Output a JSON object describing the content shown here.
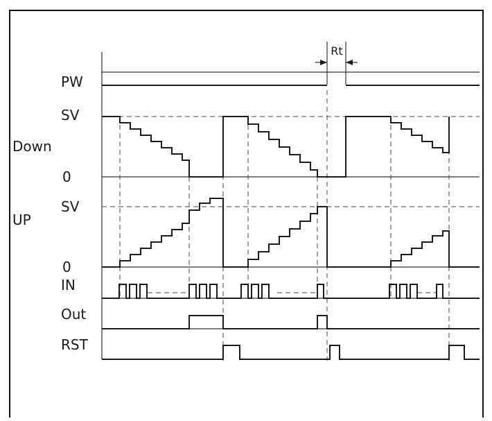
{
  "labels": {
    "pw": "PW",
    "sv_down": "SV",
    "down": "Down",
    "zero_down": "0",
    "sv_up": "SV",
    "up": "UP",
    "zero_up": "0",
    "in": "IN",
    "out": "Out",
    "rst": "RST",
    "rt": "Rt"
  }
}
